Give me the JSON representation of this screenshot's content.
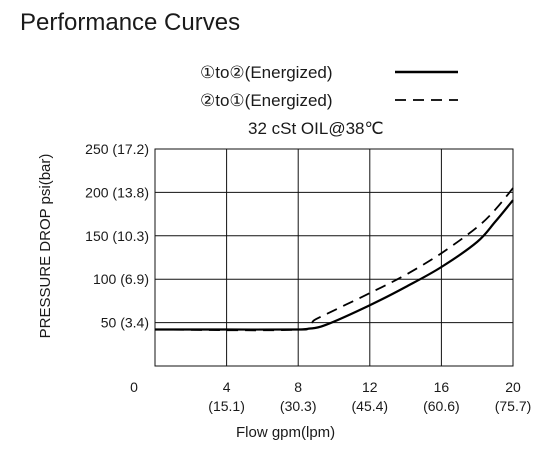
{
  "chart_data": {
    "type": "line",
    "title": "Performance Curves",
    "subtitle": "32 cSt OIL@38℃",
    "xlabel": "Flow gpm(lpm)",
    "ylabel": "PRESSURE DROP psi(bar)",
    "xlim": [
      0,
      20
    ],
    "ylim": [
      0,
      250
    ],
    "grid": true,
    "legend_position": "top-right",
    "x_origin_label": "0",
    "x_ticks": [
      {
        "value": 4,
        "label": "4",
        "sublabel": "(15.1)"
      },
      {
        "value": 8,
        "label": "8",
        "sublabel": "(30.3)"
      },
      {
        "value": 12,
        "label": "12",
        "sublabel": "(45.4)"
      },
      {
        "value": 16,
        "label": "16",
        "sublabel": "(60.6)"
      },
      {
        "value": 20,
        "label": "20",
        "sublabel": "(75.7)"
      }
    ],
    "y_ticks": [
      {
        "value": 50,
        "label": "50 (3.4)"
      },
      {
        "value": 100,
        "label": "100 (6.9)"
      },
      {
        "value": 150,
        "label": "150 (10.3)"
      },
      {
        "value": 200,
        "label": "200 (13.8)"
      },
      {
        "value": 250,
        "label": "250 (17.2)"
      }
    ],
    "series": [
      {
        "name": "①to②(Energized)",
        "style": "solid",
        "color": "#000000",
        "x": [
          0,
          4,
          8,
          8.6,
          9.5,
          12,
          14,
          16,
          18,
          19,
          20
        ],
        "y": [
          42,
          42,
          42,
          43,
          47,
          70,
          91,
          114,
          143,
          166,
          191
        ]
      },
      {
        "name": "②to①(Energized)",
        "style": "dashed",
        "color": "#000000",
        "x": [
          0,
          8,
          9,
          12,
          14,
          16,
          18,
          19,
          20
        ],
        "y": [
          42,
          42,
          54,
          84,
          105,
          130,
          160,
          180,
          205
        ]
      }
    ]
  }
}
